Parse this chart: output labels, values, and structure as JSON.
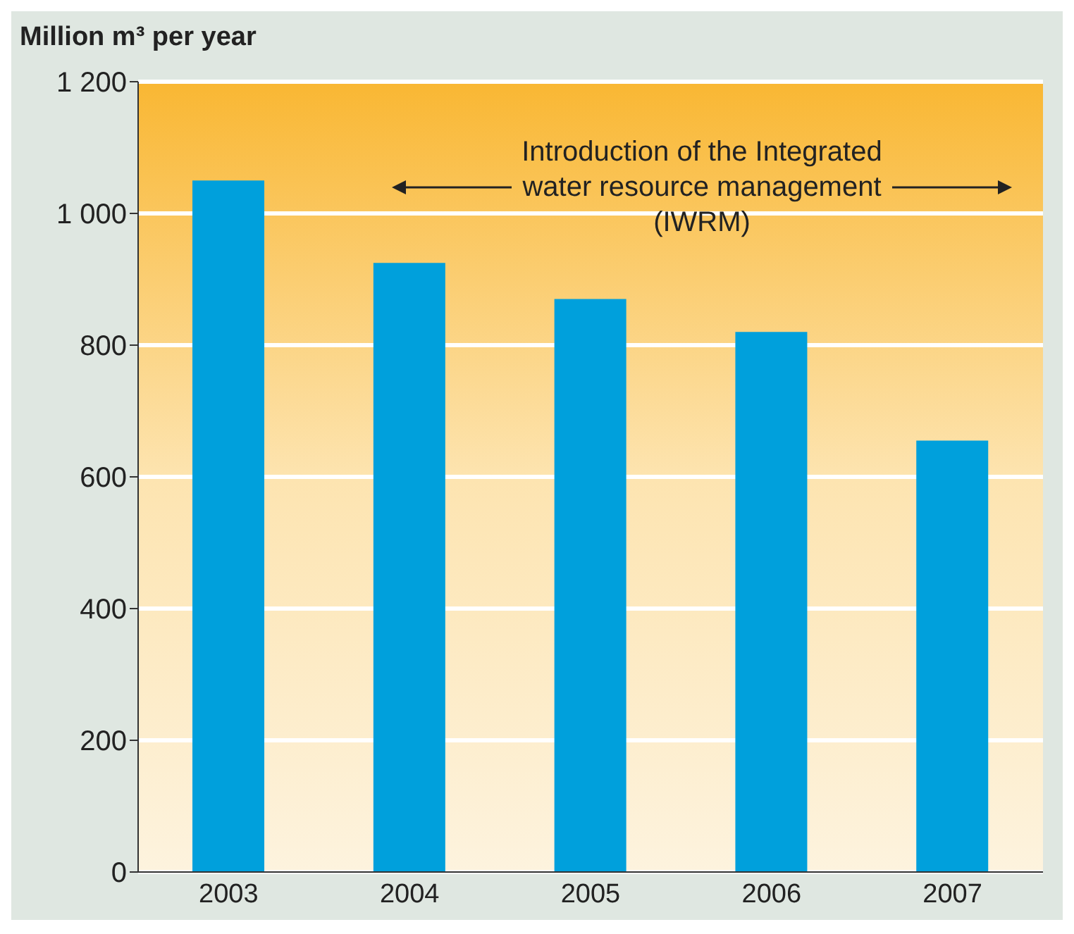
{
  "chart_data": {
    "type": "bar",
    "ylabel": "Million m³ per year",
    "categories": [
      "2003",
      "2004",
      "2005",
      "2006",
      "2007"
    ],
    "values": [
      1050,
      925,
      870,
      820,
      655
    ],
    "color": "#00a0dc",
    "ylim": [
      0,
      1200
    ],
    "yticks": [
      0,
      200,
      400,
      600,
      800,
      {
        "value": 1000,
        "label": "1 000"
      },
      {
        "value": 1200,
        "label": "1 200"
      }
    ],
    "grid": "y",
    "annotations": [
      "Introduction of the Integrated water resource management (IWRM)"
    ]
  }
}
